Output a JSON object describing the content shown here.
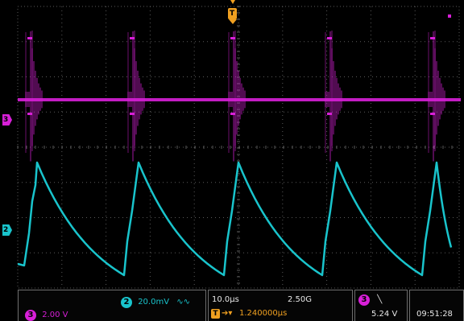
{
  "colors": {
    "ch3": "#d81fd8",
    "ch2": "#19c4cc",
    "trigger": "#f0a020",
    "grid": "#5a5a5a",
    "text": "#e8e8e8"
  },
  "markers": {
    "ch3_label": "3",
    "ch2_label": "2",
    "trigger_label": "T"
  },
  "status": {
    "ch3_badge": "3",
    "ch3_scale": "2.00 V",
    "ch2_badge": "2",
    "ch2_scale": "20.0mV",
    "ch2_coupling_icon": "waveform-icon",
    "timebase": "10.0µs",
    "sample_rate": "2.50G",
    "trig_badge": "T",
    "trig_delay": "1.240000µs",
    "trig_source_badge": "3",
    "trig_level": "5.24 V",
    "time": "09:51:28"
  }
}
